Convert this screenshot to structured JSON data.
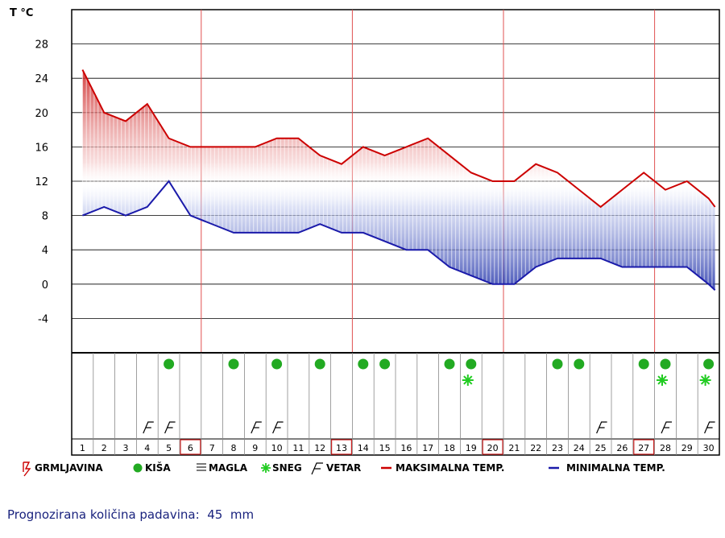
{
  "chart_data": {
    "type": "line",
    "y_axis_title": "T °C",
    "ylim": [
      -8,
      32
    ],
    "yticks": [
      "28",
      "24",
      "20",
      "16",
      "12",
      "8",
      "4",
      "0",
      "-4"
    ],
    "yticks_values": [
      28,
      24,
      20,
      16,
      12,
      8,
      4,
      0,
      -4
    ],
    "x": [
      1,
      2,
      3,
      4,
      5,
      6,
      7,
      8,
      9,
      10,
      11,
      12,
      13,
      14,
      15,
      16,
      17,
      18,
      19,
      20,
      21,
      22,
      23,
      24,
      25,
      26,
      27,
      28,
      29,
      30
    ],
    "day_labels": [
      "1",
      "2",
      "3",
      "4",
      "5",
      "6",
      "7",
      "8",
      "9",
      "10",
      "11",
      "12",
      "13",
      "14",
      "15",
      "16",
      "17",
      "18",
      "19",
      "20",
      "21",
      "22",
      "23",
      "24",
      "25",
      "26",
      "27",
      "28",
      "29",
      "30"
    ],
    "highlighted_days": [
      6,
      13,
      20,
      27
    ],
    "series": [
      {
        "name": "MAKSIMALNA TEMP.",
        "color": "#cc0000",
        "points": [
          [
            1,
            25
          ],
          [
            2,
            20
          ],
          [
            3,
            19
          ],
          [
            4,
            21
          ],
          [
            5,
            17
          ],
          [
            6,
            16
          ],
          [
            7,
            16
          ],
          [
            8,
            16
          ],
          [
            9,
            16
          ],
          [
            10,
            17
          ],
          [
            11,
            17
          ],
          [
            12,
            15
          ],
          [
            13,
            14
          ],
          [
            14,
            16
          ],
          [
            15,
            15
          ],
          [
            16,
            16
          ],
          [
            17,
            17
          ],
          [
            18,
            15
          ],
          [
            19,
            13
          ],
          [
            20,
            12
          ],
          [
            21,
            12
          ],
          [
            22,
            14
          ],
          [
            23,
            13
          ],
          [
            24,
            11
          ],
          [
            25,
            9
          ],
          [
            26,
            11
          ],
          [
            27,
            13
          ],
          [
            28,
            11
          ],
          [
            29,
            12
          ],
          [
            30,
            10
          ],
          [
            30.3,
            9
          ]
        ]
      },
      {
        "name": "MINIMALNA TEMP.",
        "color": "#1a1aaa",
        "points": [
          [
            1,
            8
          ],
          [
            2,
            9
          ],
          [
            3,
            8
          ],
          [
            4,
            9
          ],
          [
            5,
            12
          ],
          [
            6,
            8
          ],
          [
            7,
            7
          ],
          [
            8,
            6
          ],
          [
            9,
            6
          ],
          [
            10,
            6
          ],
          [
            11,
            6
          ],
          [
            12,
            7
          ],
          [
            13,
            6
          ],
          [
            14,
            6
          ],
          [
            15,
            5
          ],
          [
            16,
            4
          ],
          [
            17,
            4
          ],
          [
            18,
            2
          ],
          [
            19,
            1
          ],
          [
            20,
            0
          ],
          [
            21,
            0
          ],
          [
            22,
            2
          ],
          [
            23,
            3
          ],
          [
            24,
            3
          ],
          [
            25,
            3
          ],
          [
            26,
            2
          ],
          [
            27,
            2
          ],
          [
            28,
            2
          ],
          [
            29,
            2
          ],
          [
            30,
            0
          ],
          [
            30.3,
            -0.7
          ]
        ]
      }
    ],
    "weather_rows": {
      "kisa_days": [
        5,
        8,
        10,
        12,
        14,
        15,
        18,
        19,
        23,
        24,
        27,
        28,
        30
      ],
      "sneg_days": [
        19,
        28,
        30
      ],
      "vetar_days": [
        4,
        5,
        9,
        10,
        25,
        28,
        30
      ]
    },
    "legend": {
      "position": "bottom",
      "items": [
        {
          "icon": "grmljavina-icon",
          "label": "GRMLJAVINA"
        },
        {
          "icon": "kisa-icon",
          "label": "KIŠA"
        },
        {
          "icon": "magla-icon",
          "label": "MAGLA"
        },
        {
          "icon": "sneg-icon",
          "label": "SNEG"
        },
        {
          "icon": "vetar-icon",
          "label": "VETAR"
        },
        {
          "icon": "max-line-icon",
          "label": "MAKSIMALNA TEMP."
        },
        {
          "icon": "min-line-icon",
          "label": "MINIMALNA TEMP."
        }
      ]
    },
    "colors": {
      "max": "#cc0000",
      "min": "#1a1aaa",
      "rain": "#22aa22",
      "snow": "#22cc22",
      "week_line": "#e05050",
      "grid": "#000000",
      "highlight_box": "#cc2222"
    }
  },
  "footer": {
    "label": "Prognozirana količina padavina:",
    "value": "45",
    "unit": "mm"
  }
}
